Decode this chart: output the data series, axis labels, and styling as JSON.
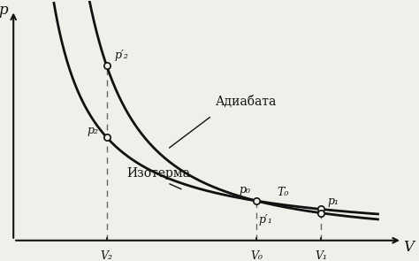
{
  "background_color": "#f0f0eb",
  "fig_width": 4.74,
  "fig_height": 2.95,
  "dpi": 100,
  "adiabat_label": "Адиабата",
  "isotherm_label": "Изотерма",
  "xlabel": "V",
  "ylabel": "p",
  "V2": 0.23,
  "V0": 0.6,
  "V1": 0.76,
  "gamma": 1.55,
  "p0": 0.165,
  "p2_label": "p₂",
  "p2prime_label": "p′₂",
  "p0_label": "p₀",
  "p1_label": "p₁",
  "p1prime_label": "p′₁",
  "T0_label": "T₀",
  "V2_label": "V₂",
  "V0_label": "V₀",
  "V1_label": "V₁",
  "curve_color": "#111111",
  "dashed_color": "#666666",
  "text_color": "#111111",
  "axis_color": "#111111",
  "point_color": "#f0f0eb",
  "point_edge_color": "#111111"
}
